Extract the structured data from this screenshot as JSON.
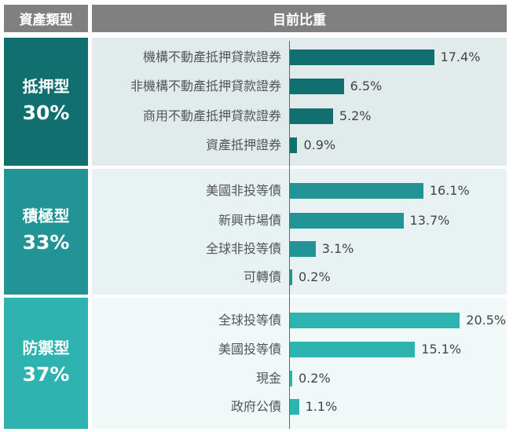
{
  "header": {
    "type_label": "資產類型",
    "weight_label": "目前比重"
  },
  "chart_data": {
    "type": "bar",
    "orientation": "horizontal",
    "unit": "%",
    "groups": [
      {
        "name": "抵押型",
        "share": "30%",
        "color": "#126f70",
        "bar_color": "#126f70",
        "panel_color": "#e1ebec",
        "items": [
          {
            "label": "機構不動產抵押貸款證券",
            "value": 17.4,
            "display": "17.4%"
          },
          {
            "label": "非機構不動產抵押貸款證券",
            "value": 6.5,
            "display": "6.5%"
          },
          {
            "label": "商用不動產抵押貸款證券",
            "value": 5.2,
            "display": "5.2%"
          },
          {
            "label": "資產抵押證券",
            "value": 0.9,
            "display": "0.9%"
          }
        ]
      },
      {
        "name": "積極型",
        "share": "33%",
        "color": "#229496",
        "bar_color": "#229496",
        "panel_color": "#e9f2f2",
        "items": [
          {
            "label": "美國非投等債",
            "value": 16.1,
            "display": "16.1%"
          },
          {
            "label": "新興市場債",
            "value": 13.7,
            "display": "13.7%"
          },
          {
            "label": "全球非投等債",
            "value": 3.1,
            "display": "3.1%"
          },
          {
            "label": "可轉債",
            "value": 0.2,
            "display": "0.2%"
          }
        ]
      },
      {
        "name": "防禦型",
        "share": "37%",
        "color": "#2fb3b0",
        "bar_color": "#2fb3b0",
        "panel_color": "#f1f8f8",
        "items": [
          {
            "label": "全球投等債",
            "value": 20.5,
            "display": "20.5%"
          },
          {
            "label": "美國投等債",
            "value": 15.1,
            "display": "15.1%"
          },
          {
            "label": "現金",
            "value": 0.2,
            "display": "0.2%"
          },
          {
            "label": "政府公債",
            "value": 1.1,
            "display": "1.1%"
          }
        ]
      }
    ]
  }
}
